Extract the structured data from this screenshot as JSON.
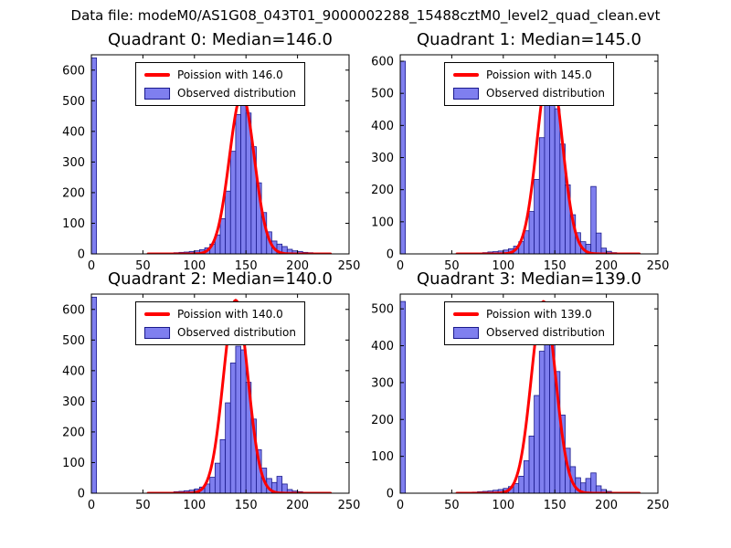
{
  "figure": {
    "title": "Data file: modeM0/AS1G08_043T01_9000002288_15488cztM0_level2_quad_clean.evt",
    "background": "#ffffff",
    "colors": {
      "bar_fill": "#7f7fef",
      "bar_edge": "#1a1a8c",
      "curve": "#ff0000",
      "axis": "#000000",
      "text": "#000000"
    }
  },
  "chart_data": [
    {
      "type": "bar",
      "subtype": "histogram-with-fit-line",
      "title": "Quadrant 0: Median=146.0",
      "legend": [
        "Poission with 146.0",
        "Observed distribution"
      ],
      "legend_position": "upper center",
      "xlabel": "",
      "ylabel": "",
      "xlim": [
        0,
        250
      ],
      "ylim": [
        0,
        650
      ],
      "xticks": [
        0,
        50,
        100,
        150,
        200,
        250
      ],
      "yticks": [
        0,
        100,
        200,
        300,
        400,
        500,
        600
      ],
      "grid": false,
      "bin_width": 5,
      "bins": [
        [
          0,
          640
        ],
        [
          70,
          2
        ],
        [
          75,
          3
        ],
        [
          80,
          4
        ],
        [
          85,
          5
        ],
        [
          90,
          6
        ],
        [
          95,
          8
        ],
        [
          100,
          10
        ],
        [
          105,
          14
        ],
        [
          110,
          20
        ],
        [
          115,
          32
        ],
        [
          120,
          62
        ],
        [
          125,
          115
        ],
        [
          130,
          205
        ],
        [
          135,
          335
        ],
        [
          140,
          455
        ],
        [
          145,
          500
        ],
        [
          150,
          460
        ],
        [
          155,
          350
        ],
        [
          160,
          232
        ],
        [
          165,
          135
        ],
        [
          170,
          72
        ],
        [
          175,
          42
        ],
        [
          180,
          32
        ],
        [
          185,
          24
        ],
        [
          190,
          15
        ],
        [
          195,
          10
        ],
        [
          200,
          8
        ],
        [
          205,
          5
        ],
        [
          210,
          4
        ],
        [
          215,
          2
        ]
      ],
      "poisson": {
        "lambda": 146,
        "peak": 520
      }
    },
    {
      "type": "bar",
      "subtype": "histogram-with-fit-line",
      "title": "Quadrant 1: Median=145.0",
      "legend": [
        "Poission with 145.0",
        "Observed distribution"
      ],
      "legend_position": "upper center",
      "xlabel": "",
      "ylabel": "",
      "xlim": [
        0,
        250
      ],
      "ylim": [
        0,
        620
      ],
      "xticks": [
        0,
        50,
        100,
        150,
        200,
        250
      ],
      "yticks": [
        0,
        100,
        200,
        300,
        400,
        500,
        600
      ],
      "grid": false,
      "bin_width": 5,
      "bins": [
        [
          0,
          600
        ],
        [
          70,
          2
        ],
        [
          75,
          3
        ],
        [
          80,
          4
        ],
        [
          85,
          6
        ],
        [
          90,
          7
        ],
        [
          95,
          9
        ],
        [
          100,
          12
        ],
        [
          105,
          16
        ],
        [
          110,
          24
        ],
        [
          115,
          38
        ],
        [
          120,
          72
        ],
        [
          125,
          132
        ],
        [
          130,
          232
        ],
        [
          135,
          362
        ],
        [
          140,
          472
        ],
        [
          145,
          498
        ],
        [
          150,
          452
        ],
        [
          155,
          342
        ],
        [
          160,
          215
        ],
        [
          165,
          122
        ],
        [
          170,
          66
        ],
        [
          175,
          38
        ],
        [
          180,
          30
        ],
        [
          185,
          210
        ],
        [
          190,
          65
        ],
        [
          195,
          18
        ],
        [
          200,
          8
        ],
        [
          205,
          4
        ]
      ],
      "poisson": {
        "lambda": 145,
        "peak": 590
      }
    },
    {
      "type": "bar",
      "subtype": "histogram-with-fit-line",
      "title": "Quadrant 2: Median=140.0",
      "legend": [
        "Poission with 140.0",
        "Observed distribution"
      ],
      "legend_position": "upper center",
      "xlabel": "",
      "ylabel": "",
      "xlim": [
        0,
        250
      ],
      "ylim": [
        0,
        650
      ],
      "xticks": [
        0,
        50,
        100,
        150,
        200,
        250
      ],
      "yticks": [
        0,
        100,
        200,
        300,
        400,
        500,
        600
      ],
      "grid": false,
      "bin_width": 5,
      "bins": [
        [
          0,
          640
        ],
        [
          70,
          2
        ],
        [
          75,
          3
        ],
        [
          80,
          5
        ],
        [
          85,
          6
        ],
        [
          90,
          8
        ],
        [
          95,
          10
        ],
        [
          100,
          14
        ],
        [
          105,
          20
        ],
        [
          110,
          30
        ],
        [
          115,
          52
        ],
        [
          120,
          98
        ],
        [
          125,
          175
        ],
        [
          130,
          295
        ],
        [
          135,
          425
        ],
        [
          140,
          480
        ],
        [
          145,
          468
        ],
        [
          150,
          362
        ],
        [
          155,
          242
        ],
        [
          160,
          142
        ],
        [
          165,
          82
        ],
        [
          170,
          48
        ],
        [
          175,
          35
        ],
        [
          180,
          55
        ],
        [
          185,
          30
        ],
        [
          190,
          12
        ],
        [
          195,
          7
        ],
        [
          200,
          5
        ],
        [
          205,
          3
        ],
        [
          210,
          2
        ],
        [
          215,
          2
        ]
      ],
      "poisson": {
        "lambda": 140,
        "peak": 630
      }
    },
    {
      "type": "bar",
      "subtype": "histogram-with-fit-line",
      "title": "Quadrant 3: Median=139.0",
      "legend": [
        "Poission with 139.0",
        "Observed distribution"
      ],
      "legend_position": "upper center",
      "xlabel": "",
      "ylabel": "",
      "xlim": [
        0,
        250
      ],
      "ylim": [
        0,
        540
      ],
      "xticks": [
        0,
        50,
        100,
        150,
        200,
        250
      ],
      "yticks": [
        0,
        100,
        200,
        300,
        400,
        500
      ],
      "grid": false,
      "bin_width": 5,
      "bins": [
        [
          0,
          520
        ],
        [
          65,
          2
        ],
        [
          70,
          3
        ],
        [
          75,
          4
        ],
        [
          80,
          5
        ],
        [
          85,
          6
        ],
        [
          90,
          8
        ],
        [
          95,
          10
        ],
        [
          100,
          13
        ],
        [
          105,
          18
        ],
        [
          110,
          26
        ],
        [
          115,
          46
        ],
        [
          120,
          88
        ],
        [
          125,
          155
        ],
        [
          130,
          265
        ],
        [
          135,
          385
        ],
        [
          140,
          450
        ],
        [
          145,
          432
        ],
        [
          150,
          330
        ],
        [
          155,
          212
        ],
        [
          160,
          122
        ],
        [
          165,
          72
        ],
        [
          170,
          42
        ],
        [
          175,
          28
        ],
        [
          180,
          40
        ],
        [
          185,
          55
        ],
        [
          190,
          20
        ],
        [
          195,
          10
        ],
        [
          200,
          5
        ]
      ],
      "poisson": {
        "lambda": 139,
        "peak": 520
      }
    }
  ]
}
